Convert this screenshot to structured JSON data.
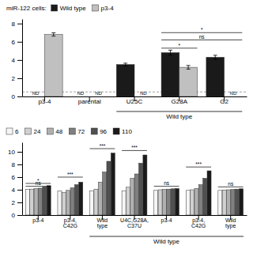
{
  "chart_data": [
    {
      "type": "bar",
      "categories": [
        "p3-4",
        "parental",
        "U25C",
        "G28A",
        "G2"
      ],
      "series": [
        {
          "name": "Wild type",
          "color": "#1a1a1a",
          "values": [
            null,
            null,
            3.5,
            4.8,
            4.3
          ],
          "errors": [
            null,
            null,
            0.15,
            0.28,
            0.22
          ]
        },
        {
          "name": "p3-4",
          "color": "#c0c0c0",
          "values": [
            6.8,
            null,
            null,
            3.2,
            null
          ],
          "errors": [
            0.18,
            null,
            null,
            0.2,
            null
          ]
        }
      ],
      "legend": "top",
      "legend_title": "miR-122 cells:",
      "ylim": [
        0,
        8.5
      ],
      "yticks": [
        0,
        2,
        4,
        6,
        8
      ],
      "grid": false,
      "reference_lines": [
        {
          "y": 0.5,
          "line_style": "dashed"
        }
      ],
      "annotations": [
        {
          "text": "ND",
          "category": 0,
          "series": 0
        },
        {
          "text": "ND",
          "category": 1,
          "series": 0
        },
        {
          "text": "ND",
          "category": 1,
          "series": 1
        },
        {
          "text": "ND",
          "category": 2,
          "series": 1
        },
        {
          "text": "ND",
          "category": 4,
          "series": 1
        }
      ],
      "brackets": [
        {
          "text": "*",
          "y": 5.3,
          "from_category": 3,
          "to_category": 3
        },
        {
          "text": "ns",
          "y": 6.2,
          "from_category": 3,
          "to_category": 4
        },
        {
          "text": "*",
          "y": 7.0,
          "from_category": 3,
          "to_category": 4
        }
      ],
      "category_groups": [
        {
          "text": "Wild type",
          "from_category": 2,
          "to_category": 4
        }
      ]
    },
    {
      "type": "bar",
      "categories": [
        "p3-4",
        "p3-4,\nC42G",
        "Wild\ntype",
        "U4C,G28A,\nC37U",
        "p3-4",
        "p3-4,\nC42G",
        "Wild\ntype"
      ],
      "series": [
        {
          "name": "6",
          "color": "#f5f5f5",
          "values": [
            4.05,
            3.8,
            3.85,
            3.85,
            3.9,
            3.9,
            3.9
          ]
        },
        {
          "name": "24",
          "color": "#d0d0d0",
          "values": [
            4.1,
            3.6,
            4.1,
            4.4,
            4.0,
            4.0,
            3.95
          ]
        },
        {
          "name": "48",
          "color": "#b0b0b0",
          "values": [
            4.18,
            3.9,
            5.2,
            5.8,
            4.05,
            4.2,
            4.0
          ]
        },
        {
          "name": "72",
          "color": "#808080",
          "values": [
            4.25,
            4.3,
            6.8,
            6.5,
            4.1,
            4.8,
            4.05
          ]
        },
        {
          "name": "96",
          "color": "#505050",
          "values": [
            4.45,
            4.8,
            8.5,
            8.2,
            4.15,
            5.8,
            4.1
          ]
        },
        {
          "name": "110",
          "color": "#1a1a1a",
          "values": [
            4.65,
            5.2,
            9.8,
            9.5,
            4.2,
            7.0,
            4.15
          ]
        }
      ],
      "legend": "top",
      "ylim": [
        0,
        11.5
      ],
      "yticks": [
        0,
        2,
        4,
        6,
        8,
        10
      ],
      "grid": false,
      "brackets": [
        {
          "text": "*",
          "y": 5.0,
          "from_category": 0,
          "to_category": 0
        },
        {
          "text": "ns",
          "y": 4.55,
          "from_category": 0,
          "to_category": 0
        },
        {
          "text": "***",
          "y": 6.0,
          "from_category": 1,
          "to_category": 1
        },
        {
          "text": "***",
          "y": 10.5,
          "from_category": 2,
          "to_category": 2
        },
        {
          "text": "***",
          "y": 10.2,
          "from_category": 3,
          "to_category": 3
        },
        {
          "text": "ns",
          "y": 4.55,
          "from_category": 4,
          "to_category": 4
        },
        {
          "text": "***",
          "y": 7.6,
          "from_category": 5,
          "to_category": 5
        },
        {
          "text": "ns",
          "y": 4.45,
          "from_category": 6,
          "to_category": 6
        }
      ],
      "category_groups": [
        {
          "text": "Wild type",
          "from_category": 2,
          "to_category": 6
        }
      ]
    }
  ]
}
